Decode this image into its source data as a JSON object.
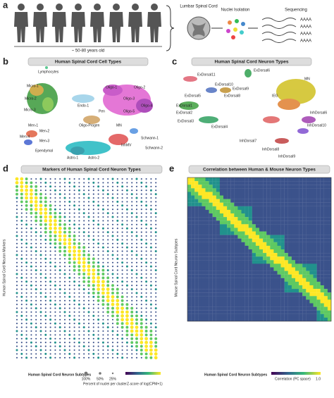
{
  "panels": {
    "a": {
      "label": "a",
      "age": "~ 50-80 years old",
      "cord": "Lumbar Spinal Cord",
      "isolation": "Nuclei Isolation",
      "sequencing": "Sequencing",
      "reads": [
        "AAAA",
        "AAAA",
        "AAAA",
        "AAAA"
      ]
    },
    "b": {
      "label": "b",
      "title": "Human Spinal Cord Cell Types",
      "clusters": [
        "Lymphocytes",
        "Micro-1",
        "Micro-2",
        "Micro-3",
        "Oligo-1",
        "Oligo-2",
        "Oligo-3",
        "Oligo-4",
        "Oligo-5",
        "Endo-1",
        "Pen",
        "Oligo-Progen",
        "Men-1",
        "Men-2",
        "Men-3",
        "Men-4",
        "Ependymal",
        "Astro-1",
        "Astro-2",
        "MN",
        "InhMV",
        "Schwann-1",
        "Schwann-2"
      ]
    },
    "c": {
      "label": "c",
      "title": "Human Spinal Cord Neuron Types",
      "clusters": [
        "ExDorsal11",
        "ExDorsal6",
        "ExDorsal10",
        "ExDorsal9",
        "ExDorsal8",
        "ExDorsal5",
        "ExDorsal1",
        "ExDorsal2",
        "ExDorsal3",
        "ExDorsal4",
        "MN",
        "IEG",
        "InhDorsal6",
        "InhDorsal10",
        "InhDorsal7",
        "InhDorsal8",
        "InhDorsal9"
      ]
    },
    "d": {
      "label": "d",
      "title": "Markers of Human Spinal Cord Neuron Types",
      "ylabel": "Human Spinal Cord Neuron Markers",
      "xlabel": "Human Spinal Cord Neuron Subtypes",
      "size_legend": "Percent of nuclei per cluster",
      "color_legend": "Z-score of log(CPM+1)",
      "sizes": [
        "100%",
        "50%",
        "25%"
      ]
    },
    "e": {
      "label": "e",
      "title": "Correlation between Human & Mouse Neuron Types",
      "ylabel": "Mouse Spinal Cord Neuron Subtypes",
      "xlabel": "Human Spinal Cord Neuron Subtypes",
      "legend": "Correlation (PC space)",
      "max": "1.0"
    }
  }
}
